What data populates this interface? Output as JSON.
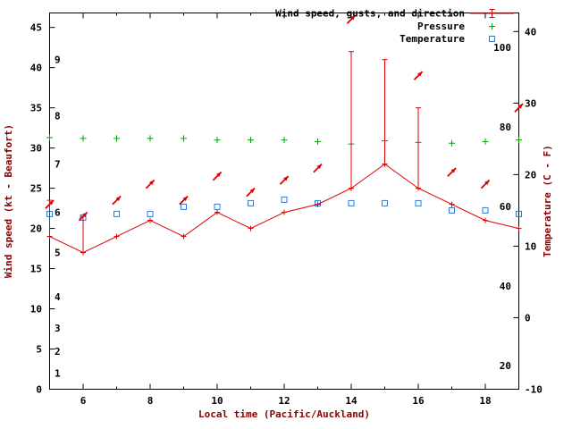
{
  "chart_data": {
    "type": "line",
    "title": "",
    "x_label": "Local time (Pacific/Auckland)",
    "y_left_label": "Wind speed (kt - Beaufort)",
    "y_right_label": "Temperature (C - F)",
    "legend": [
      {
        "label": "Wind speed, gusts, and direction",
        "marker": "errorbar-line",
        "color": "#dd0000"
      },
      {
        "label": "Pressure",
        "marker": "plus",
        "color": "#00a400"
      },
      {
        "label": "Temperature",
        "marker": "open-square",
        "color": "#2b7bd4"
      }
    ],
    "x_hours": [
      5,
      6,
      7,
      8,
      9,
      10,
      11,
      12,
      13,
      14,
      15,
      16,
      17,
      18,
      19
    ],
    "series": {
      "wind_speed_kt": [
        19,
        17,
        19,
        21,
        19,
        22,
        20,
        22,
        23,
        25,
        28,
        25,
        23,
        21,
        20
      ],
      "wind_gust_kt": [
        23.5,
        21.5,
        null,
        null,
        null,
        null,
        null,
        null,
        null,
        42,
        41,
        35,
        null,
        null,
        null
      ],
      "wind_direction_marker_kt": [
        23,
        21.5,
        23.5,
        25.5,
        23.5,
        26.5,
        24.5,
        26,
        27.5,
        46,
        null,
        39,
        27,
        25.5,
        35
      ],
      "wind_direction_arrow_deg": 45,
      "pressure_on_wind_axis": [
        31.3,
        31.2,
        31.2,
        31.2,
        31.2,
        31,
        31,
        31,
        30.8,
        30.5,
        30.9,
        30.7,
        30.6,
        30.8,
        31
      ],
      "temperature_c": [
        14.5,
        14,
        14.5,
        14.5,
        15.5,
        15.5,
        16,
        16.5,
        16,
        16,
        16,
        16,
        15,
        15,
        14.5
      ]
    },
    "axes": {
      "x": {
        "min": 5,
        "max": 19,
        "major_ticks": [
          6,
          8,
          10,
          12,
          14,
          16,
          18
        ],
        "minor_ticks": [
          5,
          7,
          9,
          11,
          13,
          15,
          17,
          19
        ]
      },
      "wind_kt": {
        "min": 0,
        "max": 46.8,
        "ticks": [
          0,
          5,
          10,
          15,
          20,
          25,
          30,
          35,
          40,
          45
        ]
      },
      "beaufort": {
        "labels": [
          "1",
          "2",
          "3",
          "4",
          "5",
          "6",
          "7",
          "8",
          "9"
        ],
        "kt_positions": [
          2,
          4.7,
          7.6,
          11.5,
          17,
          22,
          28,
          34,
          41
        ]
      },
      "temp_c": {
        "min": -10,
        "max": 42.6,
        "ticks": [
          -10,
          0,
          10,
          20,
          30,
          40
        ]
      },
      "temp_f_labels": [
        20,
        40,
        60,
        80,
        100
      ]
    },
    "colors": {
      "wind": "#dd0000",
      "pressure": "#00a400",
      "temperature": "#2b7bd4",
      "axis_title": "#8b0000",
      "tick_text": "#000000",
      "border": "#000000",
      "background": "#ffffff"
    }
  }
}
